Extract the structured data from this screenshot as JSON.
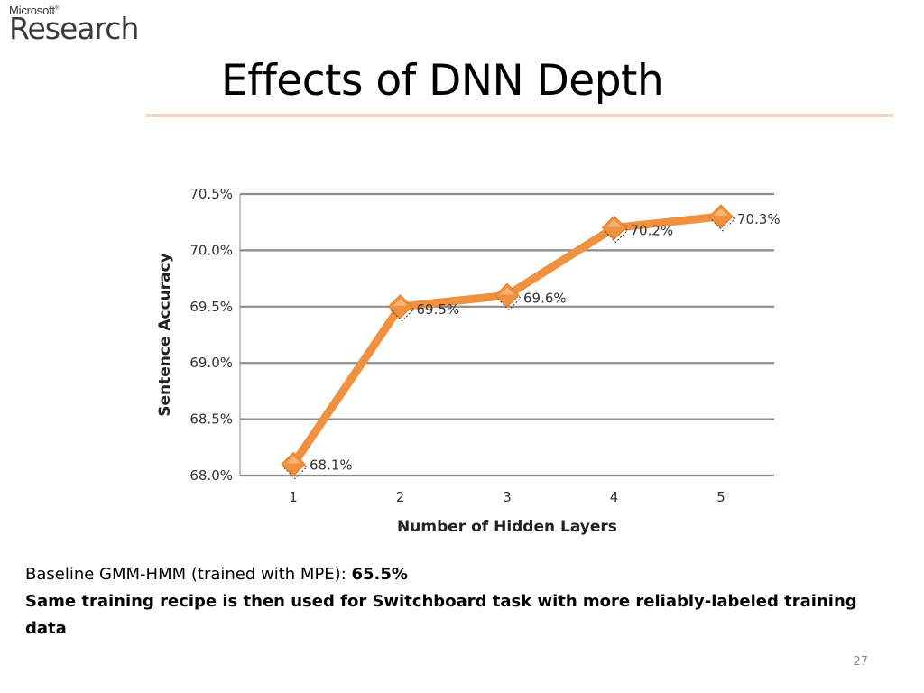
{
  "logo": {
    "small": "Microsoft",
    "reg": "®",
    "big": "Research"
  },
  "slide": {
    "title": "Effects of DNN Depth"
  },
  "chart_data": {
    "type": "line",
    "x": [
      1,
      2,
      3,
      4,
      5
    ],
    "categories": [
      "1",
      "2",
      "3",
      "4",
      "5"
    ],
    "values": [
      68.1,
      69.5,
      69.6,
      70.2,
      70.3
    ],
    "data_labels": [
      "68.1%",
      "69.5%",
      "69.6%",
      "70.2%",
      "70.3%"
    ],
    "xlabel": "Number of Hidden Layers",
    "ylabel": "Sentence Accuracy",
    "ylim": [
      68.0,
      70.5
    ],
    "yticks": [
      68.0,
      68.5,
      69.0,
      69.5,
      70.0,
      70.5
    ],
    "ytick_labels": [
      "68.0%",
      "68.5%",
      "69.0%",
      "69.5%",
      "70.0%",
      "70.5%"
    ],
    "grid": true,
    "line_color": "#f0913f",
    "marker": "diamond",
    "marker_color": "#f0913f"
  },
  "body": {
    "line1_prefix": "Baseline GMM-HMM (trained with MPE): ",
    "line1_value": "65.5%",
    "line2": "Same training recipe is then used for Switchboard task with more reliably-labeled training data"
  },
  "page_number": "27"
}
